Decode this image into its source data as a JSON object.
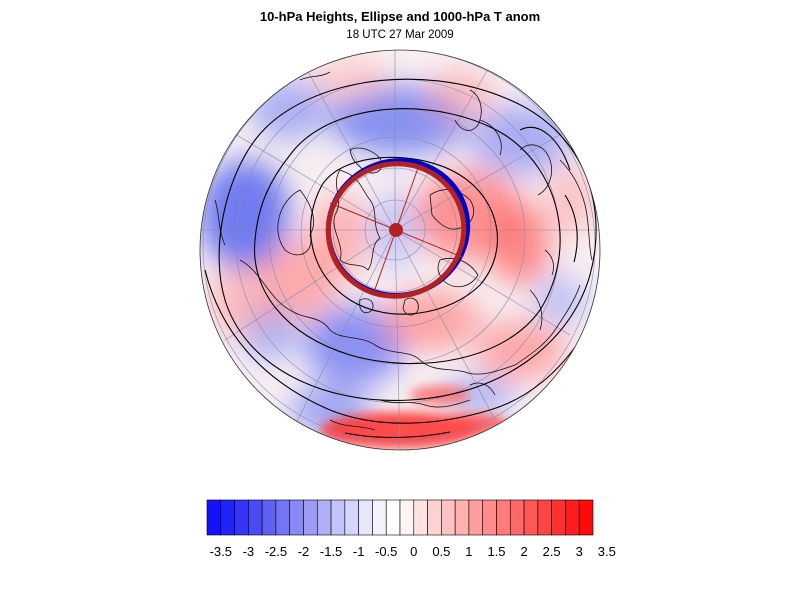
{
  "title": "10-hPa Heights, Ellipse and 1000-hPa T anom",
  "subtitle": "18 UTC 27 Mar 2009",
  "colorbar": {
    "labels": [
      "-3.5",
      "-3",
      "-2.5",
      "-2",
      "-1.5",
      "-1",
      "-0.5",
      "0",
      "0.5",
      "1",
      "1.5",
      "2",
      "2.5",
      "3",
      "3.5"
    ],
    "colors": [
      "#1212ff",
      "#2222fb",
      "#3535f7",
      "#4a4af7",
      "#6060f7",
      "#7474f7",
      "#8888f7",
      "#9c9cf7",
      "#afaff7",
      "#c3c3f9",
      "#d5d5fb",
      "#e6e6fd",
      "#f3f3ff",
      "#ffffff",
      "#fff3f3",
      "#ffe2e2",
      "#ffd2d2",
      "#ffc2c2",
      "#ffb0b0",
      "#ff9e9e",
      "#ff8c8c",
      "#ff7a7a",
      "#ff6868",
      "#ff5656",
      "#ff4444",
      "#ff3030",
      "#ff1c1c",
      "#ff0a0a"
    ]
  },
  "map": {
    "projection": "orthographic north-polar",
    "ellipse_color": "#b22222",
    "ellipse_shadow_color": "#0000cc"
  }
}
